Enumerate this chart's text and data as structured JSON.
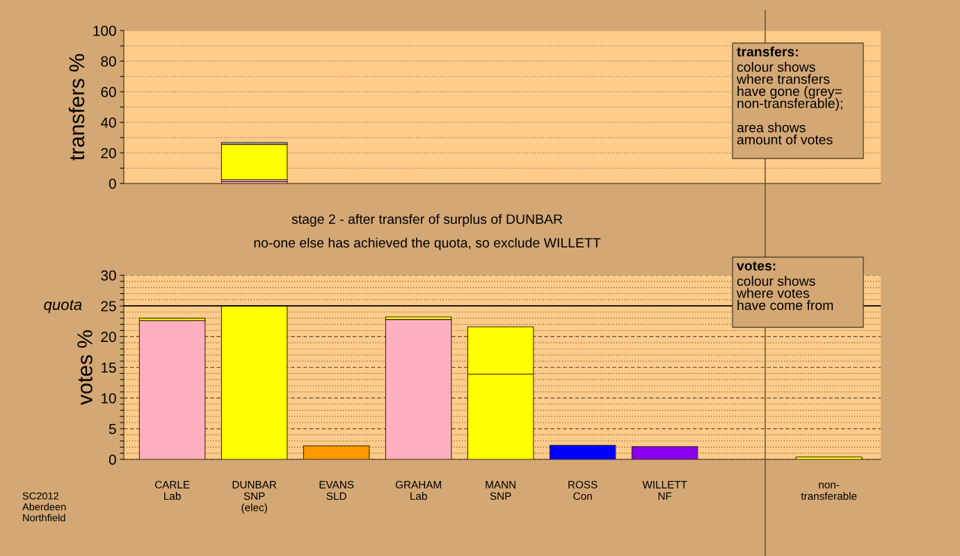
{
  "chart_data": [
    {
      "type": "bar",
      "stacked": true,
      "ylabel": "transfers %",
      "categories": [
        null,
        null,
        null,
        null,
        null,
        null,
        null,
        null,
        null
      ],
      "tick_labels": "y",
      "series": [
        {
          "color": "#ffb0c0",
          "values": [
            null,
            1.3,
            null,
            null,
            null,
            null,
            null,
            null,
            null
          ]
        },
        {
          "color": "#ffb0c0",
          "values": [
            null,
            1.2,
            null,
            null,
            null,
            null,
            null,
            null,
            null
          ]
        },
        {
          "color": "#ffff00",
          "values": [
            null,
            23.1,
            null,
            null,
            null,
            null,
            null,
            null,
            null
          ]
        },
        {
          "color": "#aaaaaa",
          "values": [
            null,
            1.2,
            null,
            null,
            null,
            null,
            null,
            null,
            null
          ]
        }
      ],
      "ylim": [
        0,
        100
      ],
      "yticks": [
        0,
        {
          "value": 10,
          "label": null
        },
        20,
        {
          "value": 30,
          "label": null
        },
        40,
        {
          "value": 50,
          "label": null
        },
        60,
        {
          "value": 70,
          "label": null
        },
        80,
        {
          "value": 90,
          "label": null
        },
        100
      ],
      "grid": "y",
      "annotations": [
        "transfers:",
        "colour shows\nwhere transfers\nhave gone (grey=\nnon-transferable);\n\narea shows\namount of votes"
      ]
    },
    {
      "type": "bar",
      "stacked": true,
      "ylabel": "votes %",
      "categories": [
        "CARLE\nLab",
        "DUNBAR\nSNP\n(elec)",
        "EVANS\nSLD",
        "GRAHAM\nLab",
        "MANN\nSNP",
        "ROSS\nCon",
        "WILLETT\nNF",
        null,
        "non-\ntransferable"
      ],
      "series": [
        {
          "colors": [
            "#ffb0c0",
            "#ffff00",
            "#ff9900",
            "#ffb0c0",
            "#ffff00",
            "#0000ff",
            "#8800ee",
            "#ffff00",
            "#ffff00"
          ],
          "values": [
            22.6,
            25.0,
            2.2,
            22.8,
            13.9,
            2.3,
            2.1,
            null,
            null
          ]
        },
        {
          "color": "#ffff00",
          "values": [
            0.4,
            null,
            null,
            0.4,
            7.7,
            null,
            null,
            null,
            0.4
          ]
        }
      ],
      "ylim": [
        0,
        30
      ],
      "yticks": [
        0,
        {
          "value": 1,
          "label": null
        },
        {
          "value": 2,
          "label": null
        },
        {
          "value": 3,
          "label": null
        },
        {
          "value": 4,
          "label": null
        },
        5,
        {
          "value": 6,
          "label": null
        },
        {
          "value": 7,
          "label": null
        },
        {
          "value": 8,
          "label": null
        },
        {
          "value": 9,
          "label": null
        },
        10,
        {
          "value": 11,
          "label": null
        },
        {
          "value": 12,
          "label": null
        },
        {
          "value": 13,
          "label": null
        },
        {
          "value": 14,
          "label": null
        },
        15,
        {
          "value": 16,
          "label": null
        },
        {
          "value": 17,
          "label": null
        },
        {
          "value": 18,
          "label": null
        },
        {
          "value": 19,
          "label": null
        },
        20,
        {
          "value": 21,
          "label": null
        },
        {
          "value": 22,
          "label": null
        },
        {
          "value": 23,
          "label": null
        },
        {
          "value": 24,
          "label": null
        },
        25,
        {
          "value": 26,
          "label": null
        },
        {
          "value": 27,
          "label": null
        },
        {
          "value": 28,
          "label": null
        },
        {
          "value": 29,
          "label": null
        },
        30
      ],
      "grid": "y",
      "ref_lines": [
        {
          "axis": "y",
          "value": 25,
          "label": "quota",
          "color": "#000000"
        }
      ],
      "annotations": [
        "stage 2 - after transfer of surplus of DUNBAR",
        "no-one else has achieved the quota, so exclude WILLETT",
        "votes:",
        "colour shows\nwhere votes\nhave come from",
        "SC2012\nAberdeen\nNorthfield"
      ]
    }
  ]
}
